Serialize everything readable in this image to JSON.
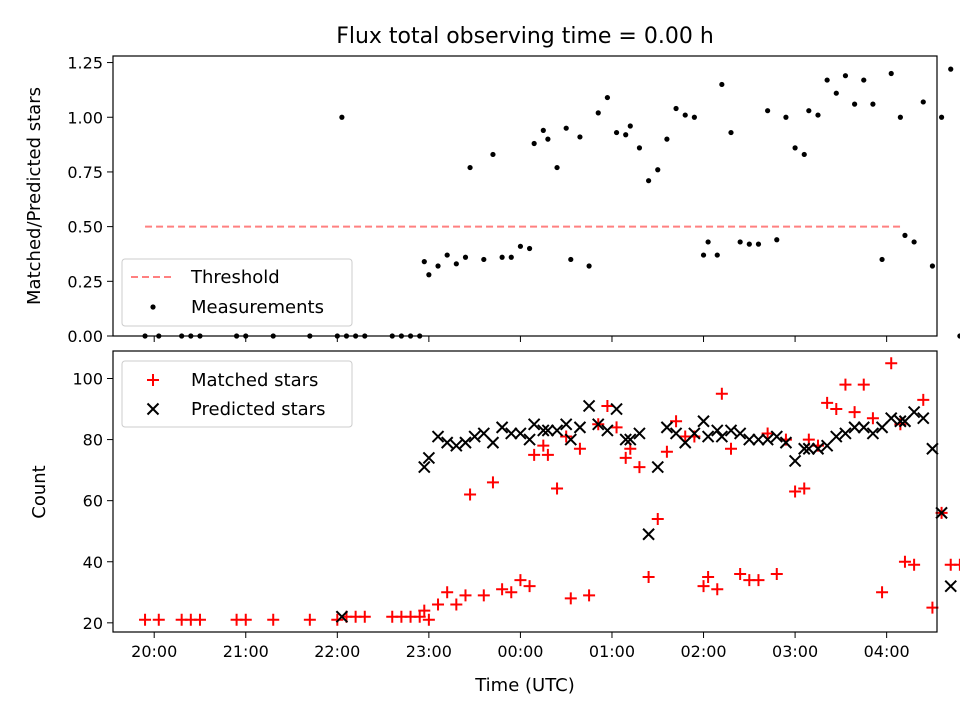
{
  "chart_data": [
    {
      "type": "scatter",
      "title": "Flux total observing time = 0.00 h",
      "xlabel": "",
      "ylabel": "Matched/Predicted stars",
      "x_unit": "hours of day (UTC); values >= 24 fall after midnight",
      "xlim": [
        19.55,
        28.55
      ],
      "ylim": [
        0,
        1.28
      ],
      "x_ticks": [
        20,
        21,
        22,
        23,
        24,
        25,
        26,
        27,
        28
      ],
      "y_ticks": [
        0.0,
        0.25,
        0.5,
        0.75,
        1.0,
        1.25
      ],
      "y_tick_labels": [
        "0.00",
        "0.25",
        "0.50",
        "0.75",
        "1.00",
        "1.25"
      ],
      "legend": {
        "position": "lower-left",
        "entries": [
          "Threshold",
          "Measurements"
        ]
      },
      "threshold": {
        "name": "Threshold",
        "y": 0.5,
        "x_range": [
          19.9,
          28.15
        ],
        "color": "#ff8080"
      },
      "series": [
        {
          "name": "Measurements",
          "marker": "dot",
          "color": "#000000",
          "points": [
            [
              19.9,
              0
            ],
            [
              20.05,
              0
            ],
            [
              20.3,
              0
            ],
            [
              20.4,
              0
            ],
            [
              20.5,
              0
            ],
            [
              20.9,
              0
            ],
            [
              21.0,
              0
            ],
            [
              21.3,
              0
            ],
            [
              21.7,
              0
            ],
            [
              22.0,
              0
            ],
            [
              22.1,
              0
            ],
            [
              22.2,
              0
            ],
            [
              22.3,
              0
            ],
            [
              22.6,
              0
            ],
            [
              22.7,
              0
            ],
            [
              22.8,
              0
            ],
            [
              22.9,
              0
            ],
            [
              22.05,
              1.0
            ],
            [
              22.95,
              0.34
            ],
            [
              23.0,
              0.28
            ],
            [
              23.1,
              0.32
            ],
            [
              23.2,
              0.37
            ],
            [
              23.3,
              0.33
            ],
            [
              23.4,
              0.36
            ],
            [
              23.45,
              0.77
            ],
            [
              23.6,
              0.35
            ],
            [
              23.7,
              0.83
            ],
            [
              23.8,
              0.36
            ],
            [
              23.9,
              0.36
            ],
            [
              24.0,
              0.41
            ],
            [
              24.1,
              0.4
            ],
            [
              24.15,
              0.88
            ],
            [
              24.25,
              0.94
            ],
            [
              24.3,
              0.9
            ],
            [
              24.4,
              0.77
            ],
            [
              24.5,
              0.95
            ],
            [
              24.55,
              0.35
            ],
            [
              24.65,
              0.91
            ],
            [
              24.75,
              0.32
            ],
            [
              24.85,
              1.02
            ],
            [
              24.95,
              1.09
            ],
            [
              25.05,
              0.93
            ],
            [
              25.15,
              0.92
            ],
            [
              25.2,
              0.96
            ],
            [
              25.3,
              0.86
            ],
            [
              25.4,
              0.71
            ],
            [
              25.5,
              0.76
            ],
            [
              25.6,
              0.9
            ],
            [
              25.7,
              1.04
            ],
            [
              25.8,
              1.01
            ],
            [
              25.9,
              1.0
            ],
            [
              26.0,
              0.37
            ],
            [
              26.05,
              0.43
            ],
            [
              26.15,
              0.37
            ],
            [
              26.2,
              1.15
            ],
            [
              26.3,
              0.93
            ],
            [
              26.4,
              0.43
            ],
            [
              26.5,
              0.42
            ],
            [
              26.6,
              0.42
            ],
            [
              26.7,
              1.03
            ],
            [
              26.8,
              0.44
            ],
            [
              26.9,
              1.0
            ],
            [
              27.0,
              0.86
            ],
            [
              27.1,
              0.83
            ],
            [
              27.15,
              1.03
            ],
            [
              27.25,
              1.01
            ],
            [
              27.35,
              1.17
            ],
            [
              27.45,
              1.11
            ],
            [
              27.55,
              1.19
            ],
            [
              27.65,
              1.06
            ],
            [
              27.75,
              1.17
            ],
            [
              27.85,
              1.06
            ],
            [
              27.95,
              0.35
            ],
            [
              28.05,
              1.2
            ],
            [
              28.15,
              1.0
            ],
            [
              28.2,
              0.46
            ],
            [
              28.3,
              0.43
            ],
            [
              28.4,
              1.07
            ],
            [
              28.5,
              0.32
            ],
            [
              28.6,
              1.0
            ],
            [
              28.7,
              1.22
            ],
            [
              28.8,
              0
            ]
          ]
        }
      ]
    },
    {
      "type": "scatter",
      "title": "",
      "xlabel": "Time (UTC)",
      "ylabel": "Count",
      "x_unit": "hours of day (UTC); values >= 24 fall after midnight",
      "xlim": [
        19.55,
        28.55
      ],
      "ylim": [
        17,
        109
      ],
      "x_ticks": [
        20,
        21,
        22,
        23,
        24,
        25,
        26,
        27,
        28
      ],
      "x_tick_labels": [
        "20:00",
        "21:00",
        "22:00",
        "23:00",
        "00:00",
        "01:00",
        "02:00",
        "03:00",
        "04:00"
      ],
      "y_ticks": [
        20,
        40,
        60,
        80,
        100
      ],
      "legend": {
        "position": "top-left",
        "entries": [
          "Matched stars",
          "Predicted stars"
        ]
      },
      "series": [
        {
          "name": "Matched stars",
          "marker": "plus",
          "color": "#ff0000",
          "points": [
            [
              19.9,
              21
            ],
            [
              20.05,
              21
            ],
            [
              20.3,
              21
            ],
            [
              20.4,
              21
            ],
            [
              20.5,
              21
            ],
            [
              20.9,
              21
            ],
            [
              21.0,
              21
            ],
            [
              21.3,
              21
            ],
            [
              21.7,
              21
            ],
            [
              22.0,
              21
            ],
            [
              22.1,
              22
            ],
            [
              22.2,
              22
            ],
            [
              22.3,
              22
            ],
            [
              22.6,
              22
            ],
            [
              22.7,
              22
            ],
            [
              22.8,
              22
            ],
            [
              22.9,
              22
            ],
            [
              22.95,
              24
            ],
            [
              23.0,
              21
            ],
            [
              23.1,
              26
            ],
            [
              23.2,
              30
            ],
            [
              23.3,
              26
            ],
            [
              23.4,
              29
            ],
            [
              23.45,
              62
            ],
            [
              23.6,
              29
            ],
            [
              23.7,
              66
            ],
            [
              23.8,
              31
            ],
            [
              23.9,
              30
            ],
            [
              24.0,
              34
            ],
            [
              24.1,
              32
            ],
            [
              24.15,
              75
            ],
            [
              24.25,
              78
            ],
            [
              24.3,
              75
            ],
            [
              24.4,
              64
            ],
            [
              24.5,
              81
            ],
            [
              24.55,
              28
            ],
            [
              24.65,
              77
            ],
            [
              24.75,
              29
            ],
            [
              24.85,
              85
            ],
            [
              24.95,
              91
            ],
            [
              25.05,
              84
            ],
            [
              25.15,
              74
            ],
            [
              25.2,
              77
            ],
            [
              25.3,
              71
            ],
            [
              25.4,
              35
            ],
            [
              25.5,
              54
            ],
            [
              25.6,
              76
            ],
            [
              25.7,
              86
            ],
            [
              25.8,
              81
            ],
            [
              25.9,
              81
            ],
            [
              26.0,
              32
            ],
            [
              26.05,
              35
            ],
            [
              26.15,
              31
            ],
            [
              26.2,
              95
            ],
            [
              26.3,
              77
            ],
            [
              26.4,
              36
            ],
            [
              26.5,
              34
            ],
            [
              26.6,
              34
            ],
            [
              26.7,
              82
            ],
            [
              26.8,
              36
            ],
            [
              26.9,
              80
            ],
            [
              27.0,
              63
            ],
            [
              27.1,
              64
            ],
            [
              27.15,
              80
            ],
            [
              27.25,
              78
            ],
            [
              27.35,
              92
            ],
            [
              27.45,
              90
            ],
            [
              27.55,
              98
            ],
            [
              27.65,
              89
            ],
            [
              27.75,
              98
            ],
            [
              27.85,
              87
            ],
            [
              27.95,
              30
            ],
            [
              28.05,
              105
            ],
            [
              28.15,
              85
            ],
            [
              28.2,
              40
            ],
            [
              28.3,
              39
            ],
            [
              28.4,
              93
            ],
            [
              28.5,
              25
            ],
            [
              28.6,
              56
            ],
            [
              28.7,
              39
            ],
            [
              28.8,
              39
            ]
          ]
        },
        {
          "name": "Predicted stars",
          "marker": "x",
          "color": "#000000",
          "points": [
            [
              22.05,
              22
            ],
            [
              22.95,
              71
            ],
            [
              23.0,
              74
            ],
            [
              23.1,
              81
            ],
            [
              23.2,
              79
            ],
            [
              23.3,
              78
            ],
            [
              23.4,
              79
            ],
            [
              23.5,
              81
            ],
            [
              23.6,
              82
            ],
            [
              23.7,
              79
            ],
            [
              23.8,
              84
            ],
            [
              23.9,
              82
            ],
            [
              24.0,
              82
            ],
            [
              24.1,
              80
            ],
            [
              24.15,
              85
            ],
            [
              24.25,
              83
            ],
            [
              24.3,
              83
            ],
            [
              24.4,
              83
            ],
            [
              24.5,
              85
            ],
            [
              24.55,
              80
            ],
            [
              24.65,
              84
            ],
            [
              24.75,
              91
            ],
            [
              24.85,
              85
            ],
            [
              24.95,
              83
            ],
            [
              25.05,
              90
            ],
            [
              25.15,
              80
            ],
            [
              25.2,
              80
            ],
            [
              25.3,
              82
            ],
            [
              25.4,
              49
            ],
            [
              25.5,
              71
            ],
            [
              25.6,
              84
            ],
            [
              25.7,
              82
            ],
            [
              25.8,
              79
            ],
            [
              25.9,
              82
            ],
            [
              26.0,
              86
            ],
            [
              26.05,
              81
            ],
            [
              26.15,
              83
            ],
            [
              26.2,
              81
            ],
            [
              26.3,
              83
            ],
            [
              26.4,
              82
            ],
            [
              26.5,
              80
            ],
            [
              26.6,
              80
            ],
            [
              26.7,
              80
            ],
            [
              26.8,
              81
            ],
            [
              26.9,
              79
            ],
            [
              27.0,
              73
            ],
            [
              27.1,
              77
            ],
            [
              27.15,
              77
            ],
            [
              27.25,
              77
            ],
            [
              27.35,
              78
            ],
            [
              27.45,
              81
            ],
            [
              27.55,
              82
            ],
            [
              27.65,
              84
            ],
            [
              27.75,
              84
            ],
            [
              27.85,
              82
            ],
            [
              27.95,
              84
            ],
            [
              28.05,
              87
            ],
            [
              28.15,
              86
            ],
            [
              28.2,
              86
            ],
            [
              28.3,
              89
            ],
            [
              28.4,
              87
            ],
            [
              28.5,
              77
            ],
            [
              28.6,
              56
            ],
            [
              28.7,
              32
            ]
          ]
        }
      ]
    }
  ]
}
